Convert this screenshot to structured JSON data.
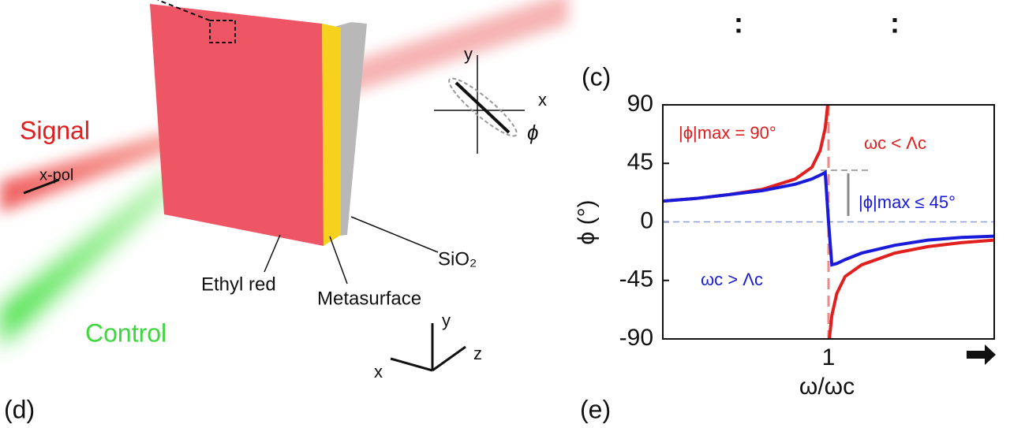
{
  "diagram": {
    "signal": "Signal",
    "xpol": "x-pol",
    "control": "Control",
    "ethyl_red": "Ethyl red",
    "metasurface": "Metasurface",
    "sio2": "SiO₂",
    "axis_x": "x",
    "axis_y": "y",
    "axis_z": "z",
    "pol_x": "x",
    "pol_y": "y",
    "pol_phi": "ϕ",
    "panel_d": "(d)",
    "panel_e": "(e)",
    "dots": [
      ":",
      ":"
    ]
  },
  "chart_data": {
    "type": "line",
    "panel": "(c)",
    "xlabel": "ω/ωc",
    "ylabel": "ϕ (°)",
    "xlim": [
      0,
      2
    ],
    "xticks": [
      1
    ],
    "ylim": [
      -90,
      90
    ],
    "yticks": [
      90,
      45,
      0,
      -45,
      -90
    ],
    "annotations": [
      "|ϕ|max = 90°",
      "ωc < Λc",
      "|ϕ|max ≤ 45°",
      "ωc > Λc"
    ],
    "series": [
      {
        "color": "#e0201e",
        "x": [
          0,
          0.2,
          0.4,
          0.6,
          0.8,
          0.9,
          0.95,
          0.98,
          0.995,
          1,
          1.005,
          1.02,
          1.05,
          1.1,
          1.2,
          1.4,
          1.6,
          1.8,
          2
        ],
        "values": [
          16,
          18,
          21,
          25,
          33,
          42,
          55,
          72,
          90,
          null,
          -90,
          -72,
          -55,
          -42,
          -33,
          -24,
          -19,
          -16,
          -14
        ]
      },
      {
        "color": "#1a1adb",
        "x": [
          0,
          0.2,
          0.4,
          0.6,
          0.8,
          0.9,
          0.95,
          0.98,
          1,
          1.02,
          1.05,
          1.1,
          1.2,
          1.4,
          1.6,
          1.8,
          2
        ],
        "values": [
          16,
          18,
          21,
          24,
          29,
          33,
          36,
          38,
          0,
          -33,
          -32,
          -29,
          -24,
          -18,
          -14,
          -12,
          -11
        ]
      }
    ]
  }
}
